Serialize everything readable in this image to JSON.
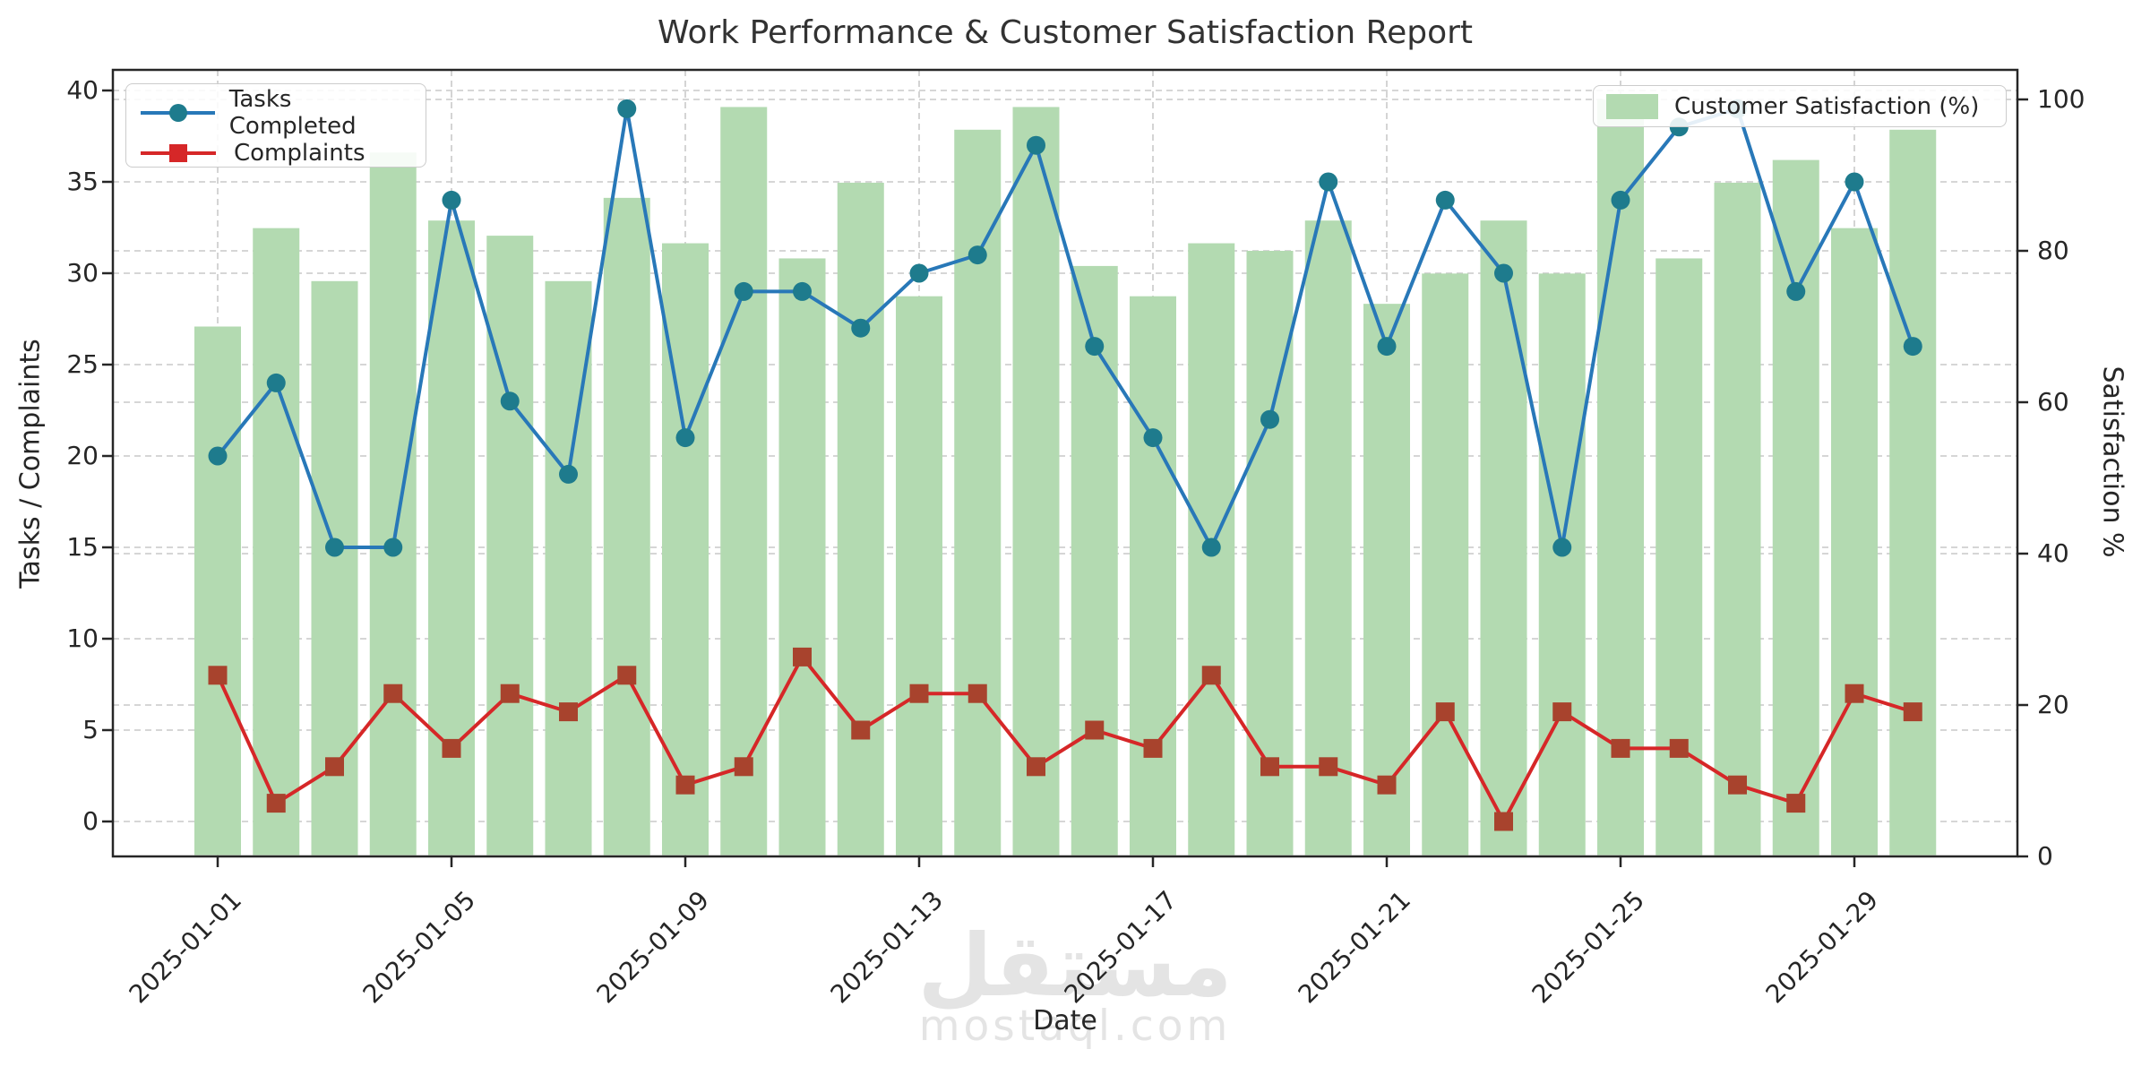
{
  "title": "Work Performance & Customer Satisfaction Report",
  "watermark": {
    "arabic": "مستقل",
    "latin": "mostaql.com"
  },
  "chart_data": {
    "type": "mixed",
    "x": [
      "2025-01-01",
      "2025-01-02",
      "2025-01-03",
      "2025-01-04",
      "2025-01-05",
      "2025-01-06",
      "2025-01-07",
      "2025-01-08",
      "2025-01-09",
      "2025-01-10",
      "2025-01-11",
      "2025-01-12",
      "2025-01-13",
      "2025-01-14",
      "2025-01-15",
      "2025-01-16",
      "2025-01-17",
      "2025-01-18",
      "2025-01-19",
      "2025-01-20",
      "2025-01-21",
      "2025-01-22",
      "2025-01-23",
      "2025-01-24",
      "2025-01-25",
      "2025-01-26",
      "2025-01-27",
      "2025-01-28",
      "2025-01-29",
      "2025-01-30"
    ],
    "series": [
      {
        "name": "Tasks Completed",
        "type": "line",
        "axis": "left",
        "marker": "circle",
        "color": "#2878b8",
        "marker_color": "#1e7b8d",
        "values": [
          20,
          24,
          15,
          15,
          34,
          23,
          19,
          39,
          21,
          29,
          29,
          27,
          30,
          31,
          37,
          26,
          21,
          15,
          22,
          35,
          26,
          34,
          30,
          15,
          34,
          38,
          39,
          29,
          35,
          26
        ]
      },
      {
        "name": "Complaints",
        "type": "line",
        "axis": "left",
        "marker": "square",
        "color": "#d62728",
        "marker_color": "#a8432d",
        "values": [
          8,
          1,
          3,
          7,
          4,
          7,
          6,
          8,
          2,
          3,
          9,
          5,
          7,
          7,
          3,
          5,
          4,
          8,
          3,
          3,
          2,
          6,
          0,
          6,
          4,
          4,
          2,
          1,
          7,
          6
        ]
      },
      {
        "name": "Customer Satisfaction (%)",
        "type": "bar",
        "axis": "right",
        "color": "#b3dab1",
        "values": [
          70,
          83,
          76,
          93,
          84,
          82,
          76,
          87,
          81,
          99,
          79,
          89,
          74,
          96,
          99,
          78,
          74,
          81,
          80,
          84,
          73,
          77,
          84,
          77,
          100,
          79,
          89,
          92,
          83,
          96
        ]
      }
    ],
    "xlabel": "Date",
    "ylabel_left": "Tasks / Complaints",
    "ylabel_right": "Satisfaction %",
    "left_ticks": [
      0,
      5,
      10,
      15,
      20,
      25,
      30,
      35,
      40
    ],
    "right_ticks": [
      0,
      20,
      40,
      60,
      80,
      100
    ],
    "ylim_left": [
      0,
      40
    ],
    "ylim_right": [
      0,
      100
    ],
    "x_tick_labels": [
      "2025-01-01",
      "2025-01-05",
      "2025-01-09",
      "2025-01-13",
      "2025-01-17",
      "2025-01-21",
      "2025-01-25",
      "2025-01-29"
    ],
    "grid": "dashed",
    "legend_left_position": "upper left",
    "legend_right_position": "upper right",
    "colors": {
      "grid": "#c9c9c9",
      "spine": "#262626",
      "text": "#262626",
      "watermark": "#e4e4e4"
    }
  }
}
